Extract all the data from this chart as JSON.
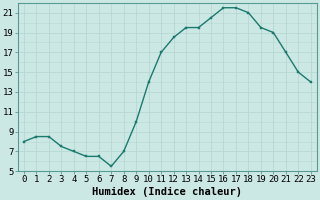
{
  "x": [
    0,
    1,
    2,
    3,
    4,
    5,
    6,
    7,
    8,
    9,
    10,
    11,
    12,
    13,
    14,
    15,
    16,
    17,
    18,
    19,
    20,
    21,
    22,
    23
  ],
  "y": [
    8.0,
    8.5,
    8.5,
    7.5,
    7.0,
    6.5,
    6.5,
    5.5,
    7.0,
    10.0,
    14.0,
    17.0,
    18.5,
    19.5,
    19.5,
    20.5,
    21.5,
    21.5,
    21.0,
    19.5,
    19.0,
    17.0,
    15.0,
    14.0
  ],
  "line_color": "#1a7a6e",
  "marker_color": "#1a7a6e",
  "bg_color": "#cce8e4",
  "grid_color": "#b8d8d4",
  "xlabel": "Humidex (Indice chaleur)",
  "xlim": [
    -0.5,
    23.5
  ],
  "ylim": [
    5,
    22
  ],
  "yticks": [
    5,
    7,
    9,
    11,
    13,
    15,
    17,
    19,
    21
  ],
  "xtick_labels": [
    "0",
    "1",
    "2",
    "3",
    "4",
    "5",
    "6",
    "7",
    "8",
    "9",
    "10",
    "11",
    "12",
    "13",
    "14",
    "15",
    "16",
    "17",
    "18",
    "19",
    "20",
    "21",
    "22",
    "23"
  ],
  "xlabel_fontsize": 7.5,
  "tick_fontsize": 6.5,
  "linewidth": 1.0,
  "markersize": 2.0
}
